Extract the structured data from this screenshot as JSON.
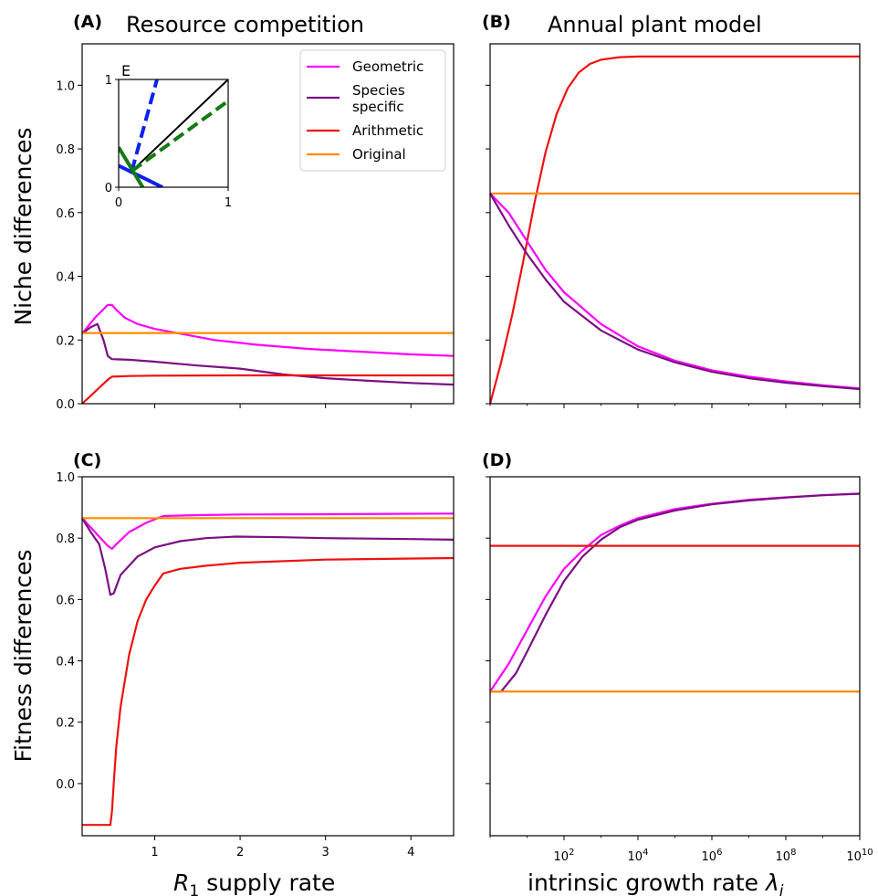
{
  "figure": {
    "titles": {
      "a": "Resource competition",
      "b": "Annual plant model"
    },
    "ylabels": {
      "top": "Niche differences",
      "bottom": "Fitness differences"
    }
  },
  "chart_data": [
    {
      "panel": "A",
      "title": "Resource competition",
      "type": "line",
      "ylabel": "Niche differences",
      "xlim": [
        0.15,
        4.5
      ],
      "ylim": [
        0,
        1.13
      ],
      "yticks": [
        0.0,
        0.2,
        0.4,
        0.6,
        0.8,
        1.0
      ],
      "xticks": [
        1,
        2,
        3,
        4
      ],
      "x_tick_labels_shown": false,
      "legend": "top-right",
      "series": [
        {
          "name": "Geometric",
          "color": "#ff00ff",
          "x": [
            0.15,
            0.3,
            0.45,
            0.5,
            0.55,
            0.65,
            0.8,
            1.0,
            1.3,
            1.7,
            2.2,
            2.8,
            3.5,
            4.0,
            4.5
          ],
          "y": [
            0.22,
            0.27,
            0.31,
            0.31,
            0.295,
            0.27,
            0.25,
            0.235,
            0.22,
            0.2,
            0.185,
            0.172,
            0.162,
            0.155,
            0.15
          ]
        },
        {
          "name": "Species\nspecific",
          "color": "#7b0f82",
          "x": [
            0.15,
            0.25,
            0.33,
            0.4,
            0.45,
            0.5,
            0.7,
            1.0,
            1.5,
            2.0,
            2.5,
            3.0,
            3.5,
            4.0,
            4.5
          ],
          "y": [
            0.22,
            0.24,
            0.25,
            0.2,
            0.15,
            0.14,
            0.138,
            0.132,
            0.12,
            0.11,
            0.092,
            0.08,
            0.072,
            0.065,
            0.06
          ]
        },
        {
          "name": "Arithmetic",
          "color": "#ee1111",
          "x": [
            0.15,
            0.25,
            0.35,
            0.45,
            0.5,
            0.7,
            1.0,
            2.0,
            3.0,
            4.5
          ],
          "y": [
            0.0,
            0.025,
            0.05,
            0.075,
            0.085,
            0.087,
            0.088,
            0.089,
            0.089,
            0.089
          ]
        },
        {
          "name": "Original",
          "color": "#ff8c00",
          "x": [
            0.15,
            4.5
          ],
          "y": [
            0.222,
            0.222
          ]
        }
      ],
      "inset": {
        "title": "E",
        "xlim": [
          0,
          1
        ],
        "ylim": [
          0,
          1
        ],
        "xticks": [
          0,
          1
        ],
        "yticks": [
          0,
          1
        ],
        "lines": [
          {
            "color": "#000000",
            "style": "solid",
            "x": [
              0.12,
              1.0
            ],
            "y": [
              0.15,
              1.0
            ]
          },
          {
            "color": "#0a22ee",
            "style": "dashed",
            "x": [
              0.12,
              0.35
            ],
            "y": [
              0.15,
              1.0
            ]
          },
          {
            "color": "#137a13",
            "style": "dashed",
            "x": [
              0.12,
              1.0
            ],
            "y": [
              0.15,
              0.8
            ]
          },
          {
            "color": "#0a22ee",
            "style": "solid",
            "x": [
              0.0,
              0.4
            ],
            "y": [
              0.2,
              0.0
            ]
          },
          {
            "color": "#137a13",
            "style": "solid",
            "x": [
              0.0,
              0.22
            ],
            "y": [
              0.37,
              0.0
            ]
          }
        ]
      }
    },
    {
      "panel": "B",
      "title": "Annual plant model",
      "type": "line",
      "xscale": "log",
      "xlim": [
        1,
        10000000000.0
      ],
      "ylim": [
        0,
        1.13
      ],
      "yticks": [
        0.0,
        0.2,
        0.4,
        0.6,
        0.8,
        1.0
      ],
      "y_tick_labels_shown": false,
      "x_tick_labels_shown": false,
      "series": [
        {
          "name": "Arithmetic",
          "color": "#ee1111",
          "log10x": [
            0,
            0.3,
            0.6,
            0.9,
            1.2,
            1.5,
            1.8,
            2.1,
            2.4,
            2.7,
            3.0,
            3.5,
            4.0,
            5.0,
            6.0,
            8.0,
            10.0
          ],
          "y": [
            0.0,
            0.13,
            0.28,
            0.45,
            0.63,
            0.79,
            0.91,
            0.99,
            1.04,
            1.067,
            1.08,
            1.088,
            1.09,
            1.09,
            1.09,
            1.09,
            1.09
          ]
        },
        {
          "name": "Original",
          "color": "#ff8c00",
          "log10x": [
            0,
            10
          ],
          "y": [
            0.66,
            0.66
          ]
        },
        {
          "name": "Geometric",
          "color": "#ff00ff",
          "log10x": [
            0,
            0.5,
            1.0,
            1.5,
            2.0,
            3.0,
            4.0,
            5.0,
            6.0,
            7.0,
            8.0,
            9.0,
            10.0
          ],
          "y": [
            0.66,
            0.6,
            0.51,
            0.42,
            0.35,
            0.25,
            0.18,
            0.135,
            0.105,
            0.085,
            0.07,
            0.058,
            0.048
          ]
        },
        {
          "name": "Species\nspecific",
          "color": "#7b0f82",
          "log10x": [
            0,
            0.5,
            1.0,
            1.5,
            2.0,
            3.0,
            4.0,
            5.0,
            6.0,
            7.0,
            8.0,
            9.0,
            10.0
          ],
          "y": [
            0.66,
            0.56,
            0.47,
            0.39,
            0.32,
            0.23,
            0.17,
            0.13,
            0.1,
            0.08,
            0.066,
            0.055,
            0.046
          ]
        }
      ]
    },
    {
      "panel": "C",
      "type": "line",
      "xlabel": "R₁ supply rate",
      "ylabel": "Fitness differences",
      "xlim": [
        0.15,
        4.5
      ],
      "ylim": [
        -0.17,
        1.0
      ],
      "yticks": [
        0.0,
        0.2,
        0.4,
        0.6,
        0.8,
        1.0
      ],
      "xticks": [
        1,
        2,
        3,
        4
      ],
      "series": [
        {
          "name": "Geometric",
          "color": "#ff00ff",
          "x": [
            0.15,
            0.3,
            0.45,
            0.5,
            0.55,
            0.7,
            0.9,
            1.1,
            1.5,
            2.0,
            3.0,
            4.5
          ],
          "y": [
            0.865,
            0.82,
            0.775,
            0.765,
            0.78,
            0.82,
            0.85,
            0.872,
            0.875,
            0.877,
            0.878,
            0.88
          ]
        },
        {
          "name": "Species\nspecific",
          "color": "#7b0f82",
          "x": [
            0.15,
            0.25,
            0.35,
            0.42,
            0.48,
            0.52,
            0.6,
            0.8,
            1.0,
            1.3,
            1.6,
            1.95,
            2.5,
            3.0,
            4.0,
            4.5
          ],
          "y": [
            0.865,
            0.82,
            0.78,
            0.7,
            0.615,
            0.62,
            0.68,
            0.74,
            0.77,
            0.79,
            0.8,
            0.805,
            0.803,
            0.8,
            0.797,
            0.795
          ]
        },
        {
          "name": "Arithmetic",
          "color": "#ee1111",
          "x": [
            0.15,
            0.2,
            0.3,
            0.4,
            0.48,
            0.5,
            0.52,
            0.55,
            0.6,
            0.7,
            0.8,
            0.9,
            1.0,
            1.1,
            1.3,
            1.6,
            2.0,
            3.0,
            4.5
          ],
          "y": [
            -0.135,
            -0.135,
            -0.135,
            -0.135,
            -0.135,
            -0.09,
            0.0,
            0.12,
            0.25,
            0.42,
            0.53,
            0.6,
            0.645,
            0.685,
            0.7,
            0.71,
            0.72,
            0.73,
            0.735
          ]
        },
        {
          "name": "Original",
          "color": "#ff8c00",
          "x": [
            0.15,
            4.5
          ],
          "y": [
            0.865,
            0.865
          ]
        }
      ]
    },
    {
      "panel": "D",
      "type": "line",
      "xscale": "log",
      "xlabel": "intrinsic growth rate λᵢ",
      "xlim": [
        1,
        10000000000.0
      ],
      "ylim": [
        -0.17,
        1.0
      ],
      "xticks": [
        "10²",
        "10⁴",
        "10⁶",
        "10⁸",
        "10¹⁰"
      ],
      "y_tick_labels_shown": false,
      "series": [
        {
          "name": "Geometric",
          "color": "#ff00ff",
          "log10x": [
            0,
            0.5,
            1.0,
            1.5,
            2.0,
            2.5,
            3.0,
            3.5,
            4.0,
            5.0,
            6.0,
            7.0,
            8.0,
            9.0,
            10.0
          ],
          "y": [
            0.3,
            0.39,
            0.5,
            0.61,
            0.7,
            0.76,
            0.81,
            0.84,
            0.865,
            0.895,
            0.912,
            0.925,
            0.933,
            0.94,
            0.945
          ]
        },
        {
          "name": "Species\nspecific",
          "color": "#7b0f82",
          "log10x": [
            0,
            0.3,
            0.7,
            1.0,
            1.5,
            2.0,
            2.5,
            3.0,
            3.5,
            4.0,
            5.0,
            6.0,
            7.0,
            8.0,
            9.0,
            10.0
          ],
          "y": [
            0.3,
            0.3,
            0.36,
            0.43,
            0.55,
            0.66,
            0.74,
            0.795,
            0.835,
            0.86,
            0.89,
            0.91,
            0.923,
            0.932,
            0.94,
            0.945
          ]
        },
        {
          "name": "Arithmetic",
          "color": "#ee1111",
          "log10x": [
            0,
            10
          ],
          "y": [
            0.775,
            0.775
          ]
        },
        {
          "name": "Original",
          "color": "#ff8c00",
          "log10x": [
            0,
            10
          ],
          "y": [
            0.3,
            0.3
          ]
        }
      ]
    }
  ]
}
